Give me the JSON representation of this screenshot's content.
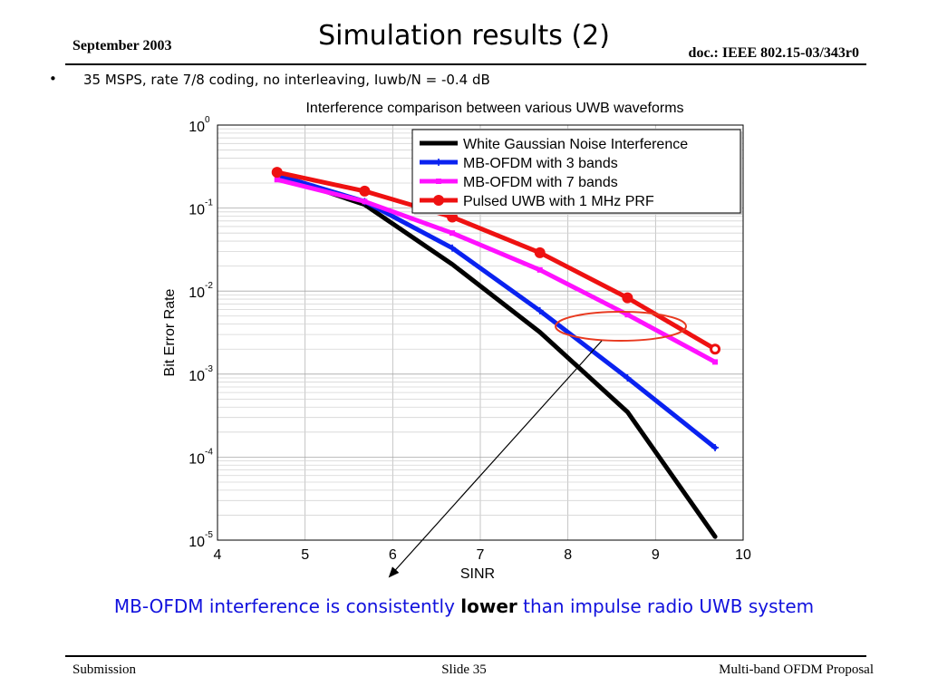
{
  "header": {
    "date": "September 2003",
    "title": "Simulation results (2)",
    "doc_id": "doc.: IEEE 802.15-03/343r0"
  },
  "bullet": {
    "marker": "•",
    "text": "35 MSPS, rate 7/8 coding, no interleaving, Iuwb/N = -0.4 dB"
  },
  "conclusion": {
    "before": "MB-OFDM interference is consistently ",
    "emphasis": "lower",
    "after": " than impulse radio UWB system"
  },
  "footer": {
    "left": "Submission",
    "center": "Slide 35",
    "right": "Multi-band OFDM Proposal"
  },
  "colors": {
    "black_series": "#000000",
    "blue_series": "#0a22f0",
    "magenta_series": "#ff11ff",
    "red_series": "#ee1111",
    "conclusion_text": "#1111dd",
    "highlight_ellipse": "#e83a20"
  },
  "chart_data": {
    "type": "line",
    "title": "Interference comparison between various UWB waveforms",
    "xlabel": "SINR",
    "ylabel": "Bit Error Rate",
    "xlim": [
      4,
      10
    ],
    "ylim": [
      1e-05,
      1
    ],
    "yscale": "log",
    "grid": true,
    "legend_position": "top-right",
    "x_ticks": [
      "4",
      "5",
      "6",
      "7",
      "8",
      "9",
      "10"
    ],
    "y_ticks": [
      {
        "base": "10",
        "exp": "0"
      },
      {
        "base": "10",
        "exp": "-1"
      },
      {
        "base": "10",
        "exp": "-2"
      },
      {
        "base": "10",
        "exp": "-3"
      },
      {
        "base": "10",
        "exp": "-4"
      },
      {
        "base": "10",
        "exp": "-5"
      }
    ],
    "series": [
      {
        "name": "White Gaussian Noise Interference",
        "color": "#000000",
        "marker": "none",
        "x": [
          4.68,
          5.68,
          6.68,
          7.68,
          8.68,
          9.68
        ],
        "y": [
          0.25,
          0.11,
          0.021,
          0.0032,
          0.00035,
          1.1e-05
        ]
      },
      {
        "name": "MB-OFDM with 3 bands",
        "color": "#0a22f0",
        "marker": "plus",
        "x": [
          4.68,
          5.68,
          6.68,
          7.68,
          8.68,
          9.68
        ],
        "y": [
          0.25,
          0.12,
          0.033,
          0.0058,
          0.0009,
          0.00013
        ]
      },
      {
        "name": "MB-OFDM with 7 bands",
        "color": "#ff11ff",
        "marker": "square",
        "x": [
          4.68,
          5.68,
          6.68,
          7.68,
          8.68,
          9.68
        ],
        "y": [
          0.22,
          0.12,
          0.05,
          0.018,
          0.0052,
          0.0014
        ]
      },
      {
        "name": "Pulsed UWB with 1 MHz PRF",
        "color": "#ee1111",
        "marker": "circle",
        "x": [
          4.68,
          5.68,
          6.68,
          7.68,
          8.68,
          9.68
        ],
        "y": [
          0.27,
          0.16,
          0.078,
          0.029,
          0.0083,
          0.002
        ]
      }
    ]
  }
}
